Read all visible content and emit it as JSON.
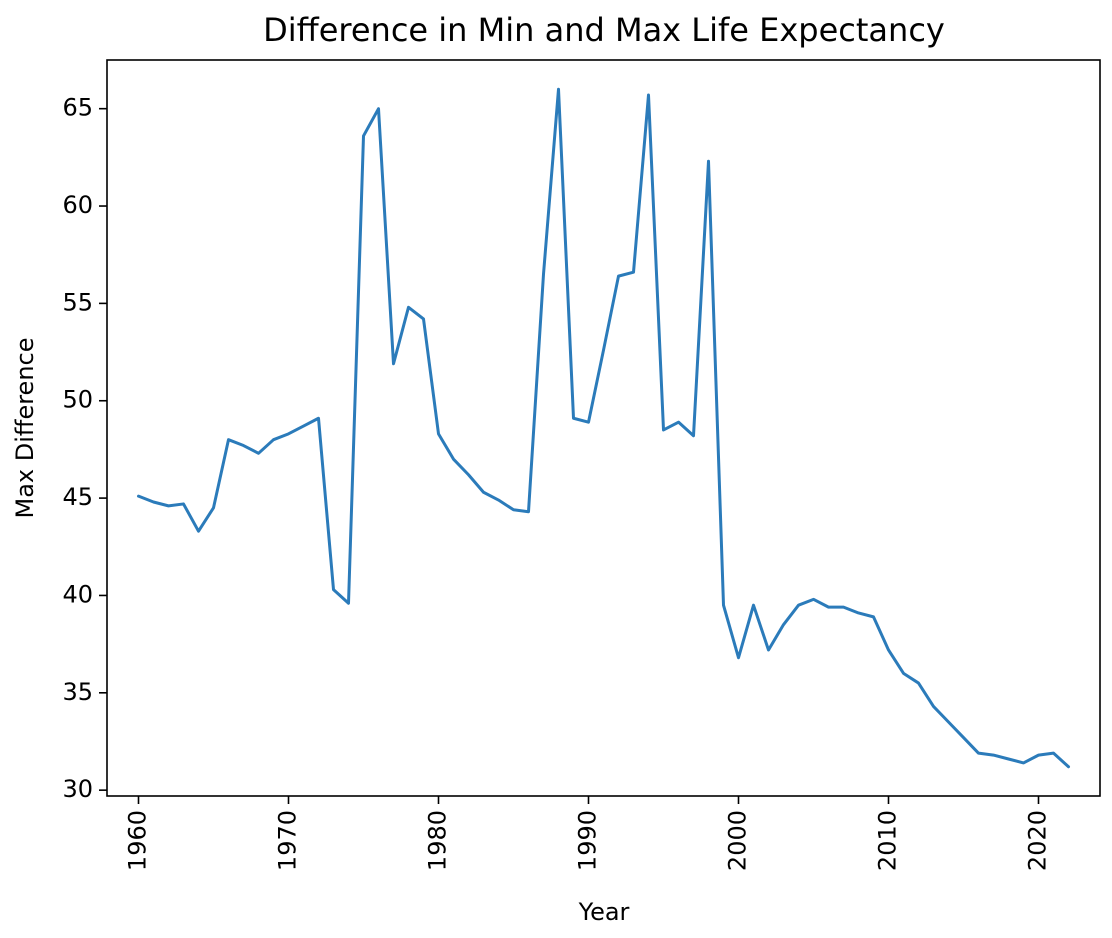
{
  "chart_data": {
    "type": "line",
    "title": "Difference in Min and Max Life Expectancy",
    "xlabel": "Year",
    "ylabel": "Max Difference",
    "xlim": [
      1957.9,
      2024.1
    ],
    "ylim": [
      29.7,
      67.5
    ],
    "grid": false,
    "legend": "none",
    "x_ticks": [
      1960,
      1970,
      1980,
      1990,
      2000,
      2010,
      2020
    ],
    "y_ticks": [
      30,
      35,
      40,
      45,
      50,
      55,
      60,
      65
    ],
    "colors": {
      "line": "#2b7bba",
      "axes": "#000000",
      "background": "#ffffff"
    },
    "series": [
      {
        "x": [
          1960,
          1961,
          1962,
          1963,
          1964,
          1965,
          1966,
          1967,
          1968,
          1969,
          1970,
          1971,
          1972,
          1973,
          1974,
          1975,
          1976,
          1977,
          1978,
          1979,
          1980,
          1981,
          1982,
          1983,
          1984,
          1985,
          1986,
          1987,
          1988,
          1989,
          1990,
          1991,
          1992,
          1993,
          1994,
          1995,
          1996,
          1997,
          1998,
          1999,
          2000,
          2001,
          2002,
          2003,
          2004,
          2005,
          2006,
          2007,
          2008,
          2009,
          2010,
          2011,
          2012,
          2013,
          2014,
          2015,
          2016,
          2017,
          2018,
          2019,
          2020,
          2021,
          2022
        ],
        "values": [
          45.1,
          44.8,
          44.6,
          44.7,
          43.3,
          44.5,
          48.0,
          47.7,
          47.3,
          48.0,
          48.3,
          48.7,
          49.1,
          40.3,
          39.6,
          63.6,
          65.0,
          51.9,
          54.8,
          54.2,
          48.3,
          47.0,
          46.2,
          45.3,
          44.9,
          44.4,
          44.3,
          56.5,
          66.0,
          49.1,
          48.9,
          52.6,
          56.4,
          56.6,
          65.7,
          48.5,
          48.9,
          48.2,
          62.3,
          39.5,
          36.8,
          39.5,
          37.2,
          38.5,
          39.5,
          39.8,
          39.4,
          39.4,
          39.1,
          38.9,
          37.2,
          36.0,
          35.5,
          34.3,
          33.5,
          32.7,
          31.9,
          31.8,
          31.6,
          31.4,
          31.8,
          31.9,
          31.2
        ]
      }
    ]
  }
}
